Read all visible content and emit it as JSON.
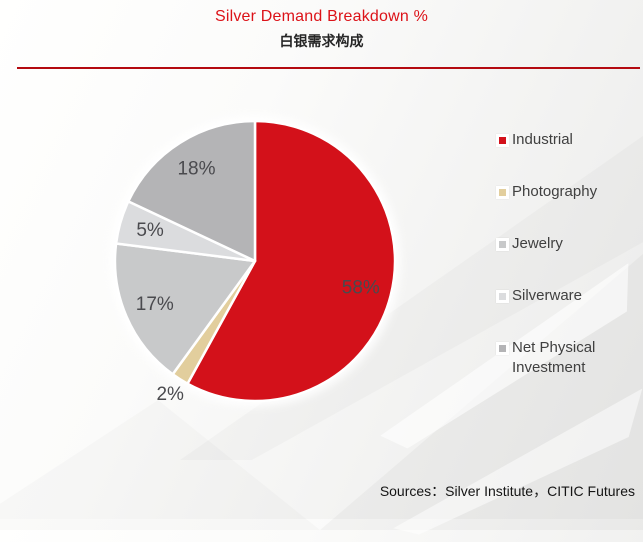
{
  "header": {
    "title": "Silver Demand Breakdown %",
    "subtitle": "白银需求构成"
  },
  "footer": {
    "sources": "Sources：Silver Institute，CITIC Futures"
  },
  "colors": {
    "title_red": "#dc1218",
    "divider_red": "#b40a10",
    "pie_label_gray": "#4a4a4e",
    "legend_text_gray": "#404040"
  },
  "chart_data": {
    "type": "pie",
    "title": "Silver Demand Breakdown %",
    "start_angle_deg": 0,
    "direction": "clockwise",
    "legend_position": "right",
    "slices": [
      {
        "label": "Industrial",
        "value": 58,
        "data_label": "58%",
        "color": "#d3111a",
        "label_position": "inside"
      },
      {
        "label": "Photography",
        "value": 2,
        "data_label": "2%",
        "color": "#e2ce9d",
        "label_position": "outside"
      },
      {
        "label": "Jewelry",
        "value": 17,
        "data_label": "17%",
        "color": "#c8c9ca",
        "label_position": "inside"
      },
      {
        "label": "Silverware",
        "value": 5,
        "data_label": "5%",
        "color": "#dbdcde",
        "label_position": "inside"
      },
      {
        "label": "Net Physical Investment",
        "value": 18,
        "data_label": "18%",
        "color": "#b4b4b6",
        "label_position": "inside"
      }
    ]
  }
}
